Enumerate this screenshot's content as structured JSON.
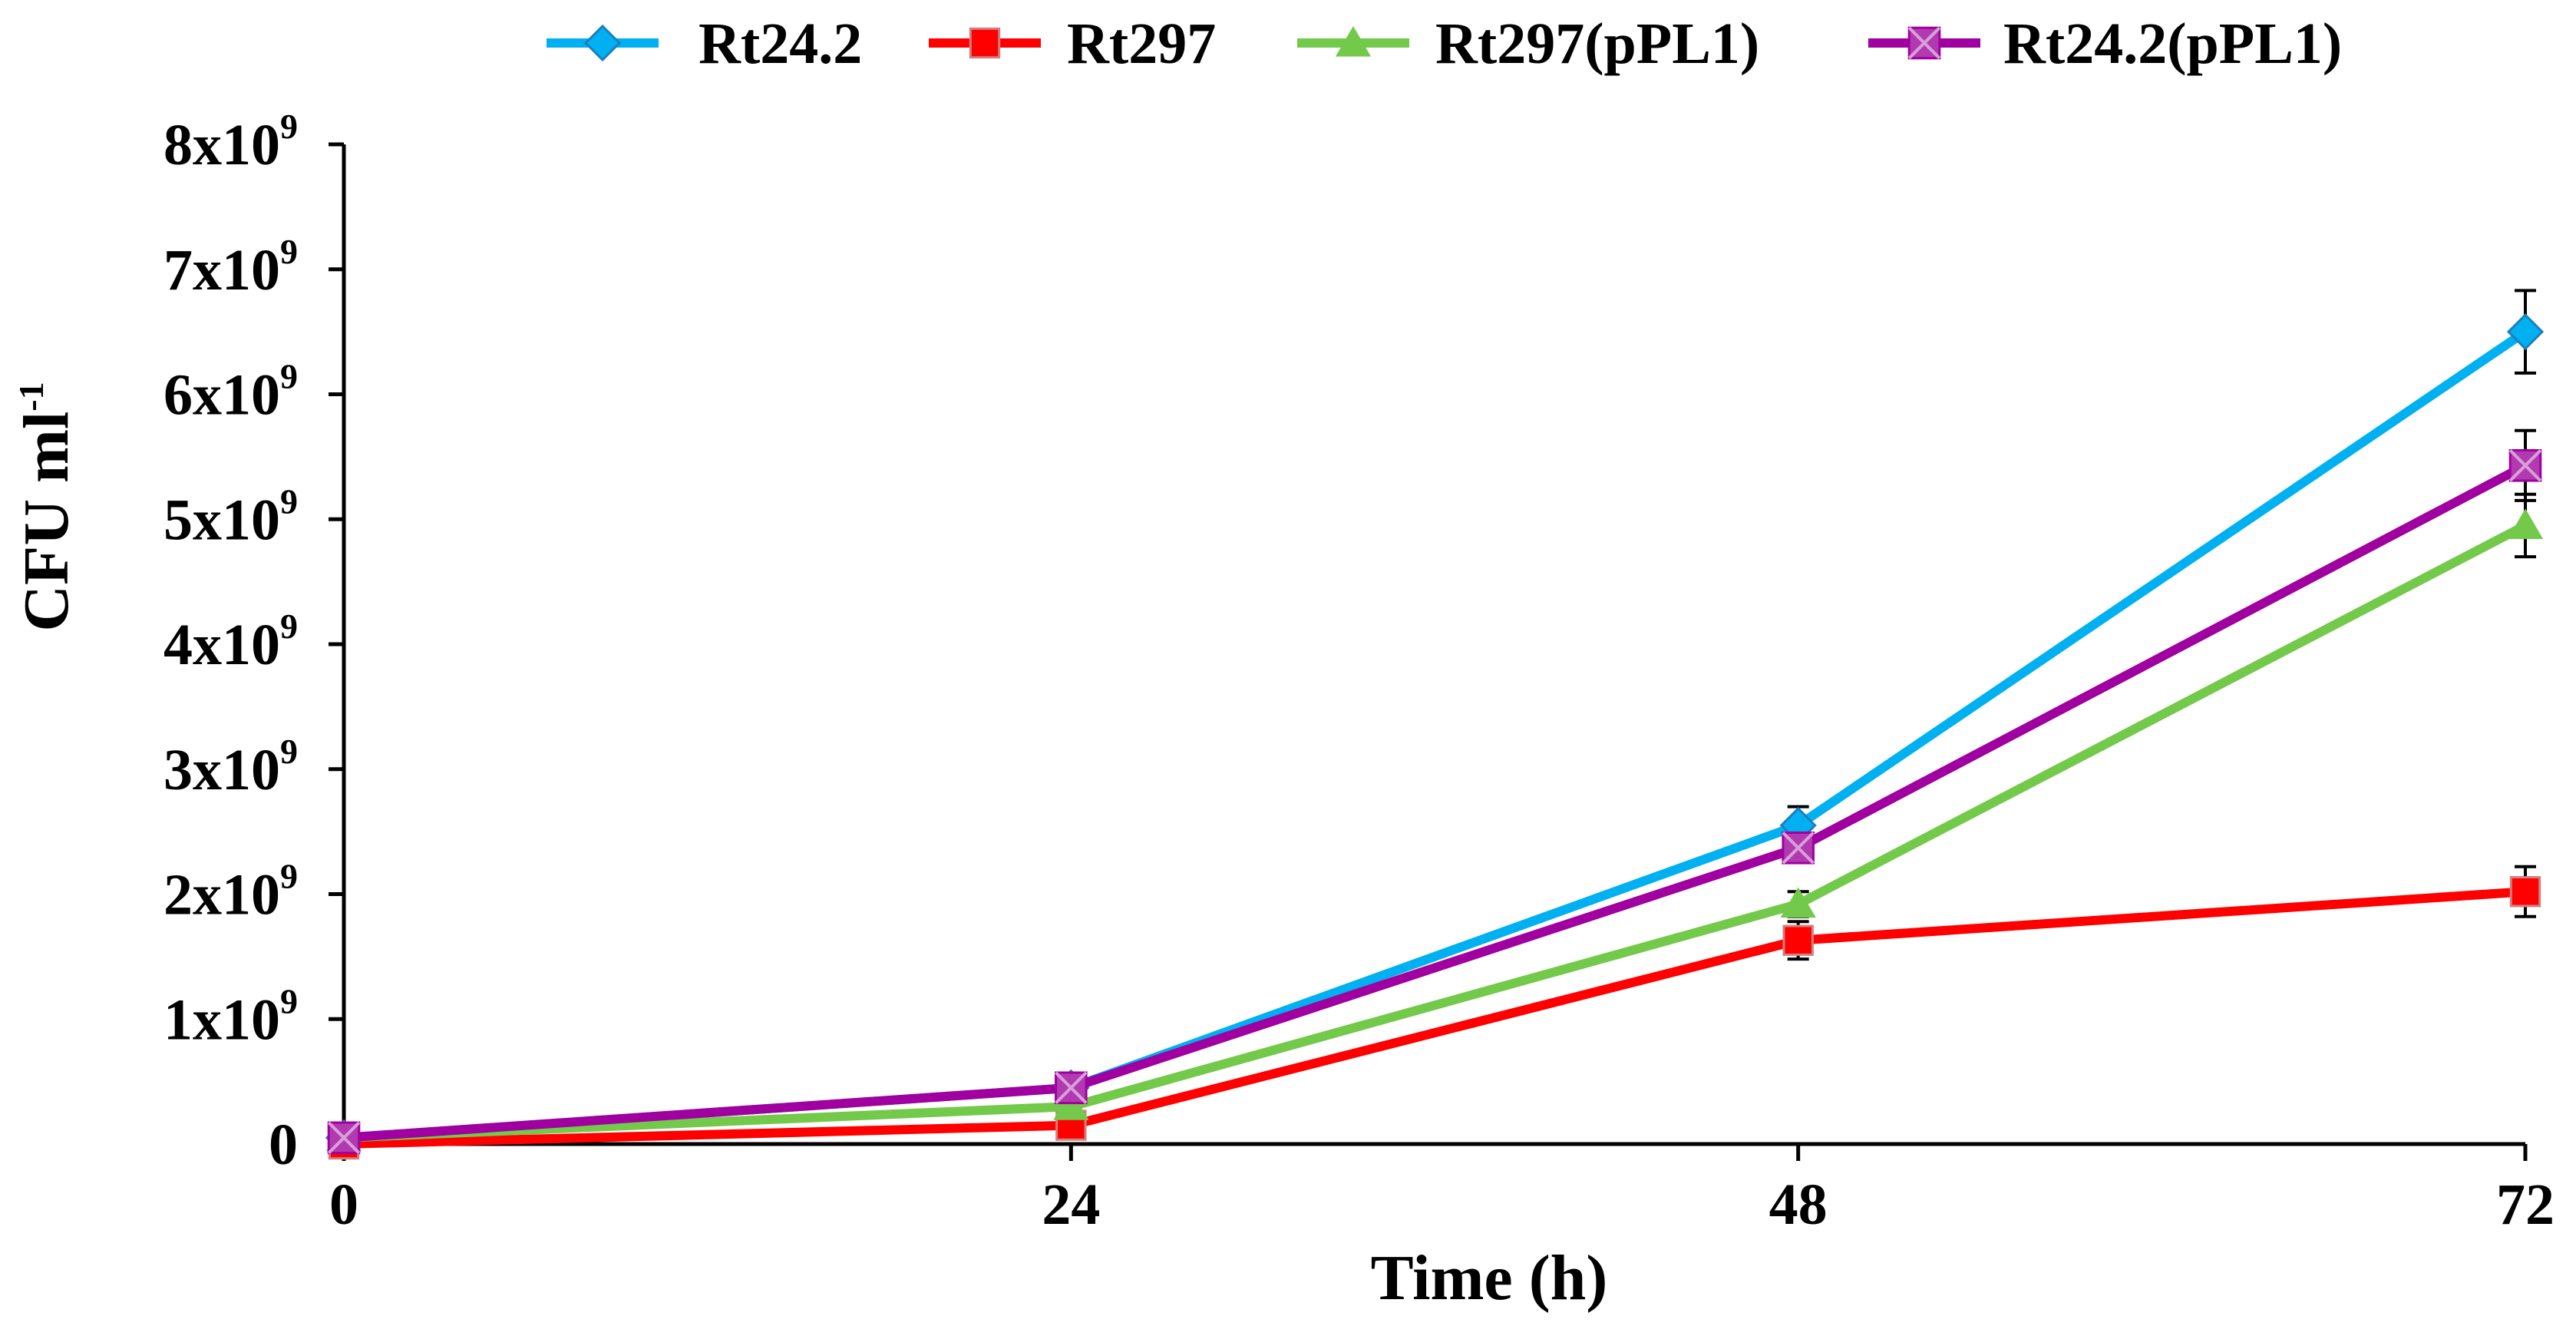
{
  "chart_data": {
    "type": "line",
    "title": "",
    "xlabel": "Time (h)",
    "ylabel": "CFU ml",
    "ylabel_superscript": "-1",
    "x": [
      0,
      24,
      48,
      72
    ],
    "x_tick_labels": [
      "0",
      "24",
      "48",
      "72"
    ],
    "xlim": [
      0,
      72
    ],
    "ylim": [
      0,
      8000000000
    ],
    "y_ticks": [
      {
        "value": 0,
        "base": "0",
        "exp": ""
      },
      {
        "value": 1000000000,
        "base": "1x10",
        "exp": "9"
      },
      {
        "value": 2000000000,
        "base": "2x10",
        "exp": "9"
      },
      {
        "value": 3000000000,
        "base": "3x10",
        "exp": "9"
      },
      {
        "value": 4000000000,
        "base": "4x10",
        "exp": "9"
      },
      {
        "value": 5000000000,
        "base": "5x10",
        "exp": "9"
      },
      {
        "value": 6000000000,
        "base": "6x10",
        "exp": "9"
      },
      {
        "value": 7000000000,
        "base": "7x10",
        "exp": "9"
      },
      {
        "value": 8000000000,
        "base": "8x10",
        "exp": "9"
      }
    ],
    "grid": false,
    "legend_position": "top",
    "series": [
      {
        "name": "Rt24.2",
        "color": "#00b0f0",
        "marker": "diamond",
        "values": [
          50000000,
          450000000,
          2550000000,
          6500000000
        ],
        "errors": [
          0,
          0,
          150000000,
          330000000
        ]
      },
      {
        "name": "Rt297",
        "color": "#ff0000",
        "marker": "square",
        "values": [
          0,
          150000000,
          1630000000,
          2020000000
        ],
        "errors": [
          0,
          0,
          150000000,
          200000000
        ]
      },
      {
        "name": "Rt297(pPL1)",
        "color": "#72c94a",
        "marker": "triangle",
        "values": [
          50000000,
          300000000,
          1920000000,
          4950000000
        ],
        "errors": [
          0,
          0,
          100000000,
          250000000
        ]
      },
      {
        "name": "Rt24.2(pPL1)",
        "color": "#a0009f",
        "marker": "xsquare",
        "values": [
          50000000,
          450000000,
          2370000000,
          5430000000
        ],
        "errors": [
          0,
          0,
          100000000,
          280000000
        ]
      }
    ]
  }
}
